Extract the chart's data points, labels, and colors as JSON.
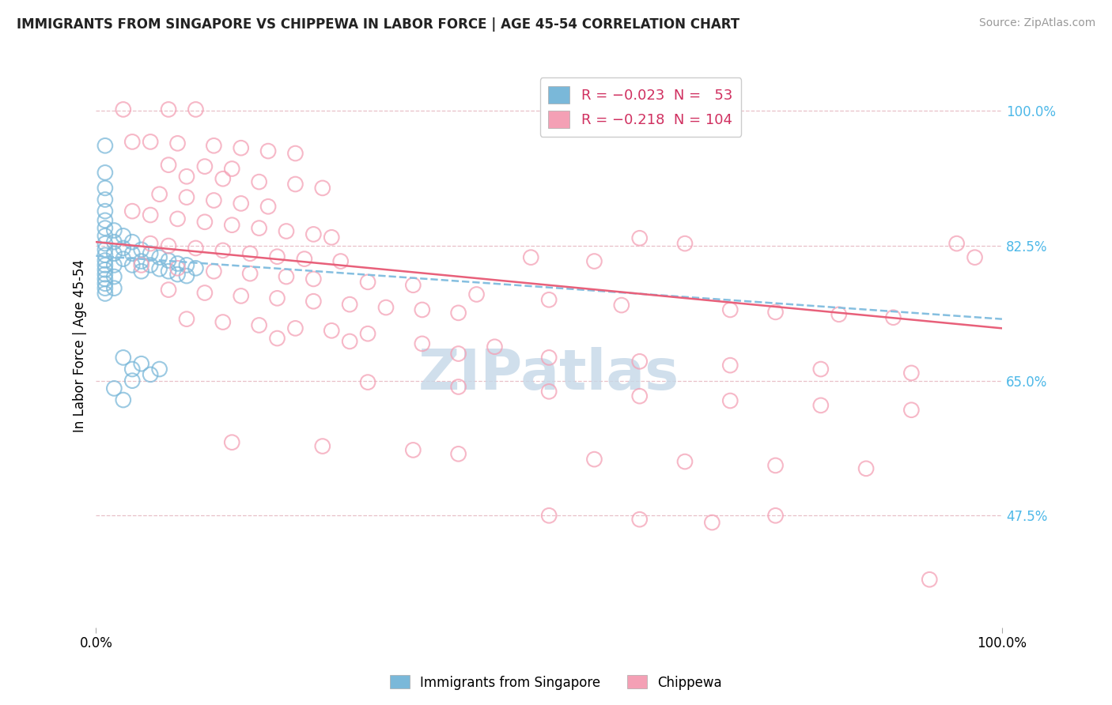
{
  "title": "IMMIGRANTS FROM SINGAPORE VS CHIPPEWA IN LABOR FORCE | AGE 45-54 CORRELATION CHART",
  "source": "Source: ZipAtlas.com",
  "ylabel": "In Labor Force | Age 45-54",
  "right_yticklabels": [
    "100.0%",
    "82.5%",
    "65.0%",
    "47.5%"
  ],
  "right_ytick_vals": [
    1.0,
    0.825,
    0.65,
    0.475
  ],
  "xtick_labels": [
    "0.0%",
    "100.0%"
  ],
  "xtick_vals": [
    0.0,
    1.0
  ],
  "singapore_color": "#7ab8d9",
  "chippewa_color": "#f4a0b5",
  "sg_line_color": "#85bfe0",
  "ch_line_color": "#e8607a",
  "bg_color": "#ffffff",
  "watermark": "ZIPatlas",
  "watermark_color": "#c5d8e8",
  "grid_color": "#e8c0c8",
  "ylim_low": 0.33,
  "ylim_high": 1.06,
  "xlim_low": 0.0,
  "xlim_high": 1.0,
  "sg_line_y0": 0.812,
  "sg_line_y1": 0.73,
  "ch_line_y0": 0.83,
  "ch_line_y1": 0.718,
  "singapore_dots": [
    [
      0.01,
      0.955
    ],
    [
      0.01,
      0.92
    ],
    [
      0.01,
      0.9
    ],
    [
      0.01,
      0.885
    ],
    [
      0.01,
      0.87
    ],
    [
      0.01,
      0.858
    ],
    [
      0.01,
      0.848
    ],
    [
      0.01,
      0.838
    ],
    [
      0.01,
      0.828
    ],
    [
      0.01,
      0.82
    ],
    [
      0.01,
      0.813
    ],
    [
      0.01,
      0.806
    ],
    [
      0.01,
      0.8
    ],
    [
      0.01,
      0.794
    ],
    [
      0.01,
      0.788
    ],
    [
      0.01,
      0.782
    ],
    [
      0.01,
      0.776
    ],
    [
      0.01,
      0.77
    ],
    [
      0.01,
      0.763
    ],
    [
      0.02,
      0.845
    ],
    [
      0.02,
      0.83
    ],
    [
      0.02,
      0.815
    ],
    [
      0.02,
      0.8
    ],
    [
      0.02,
      0.785
    ],
    [
      0.02,
      0.77
    ],
    [
      0.03,
      0.838
    ],
    [
      0.03,
      0.822
    ],
    [
      0.03,
      0.808
    ],
    [
      0.04,
      0.83
    ],
    [
      0.04,
      0.815
    ],
    [
      0.04,
      0.8
    ],
    [
      0.05,
      0.82
    ],
    [
      0.05,
      0.805
    ],
    [
      0.05,
      0.792
    ],
    [
      0.06,
      0.815
    ],
    [
      0.06,
      0.8
    ],
    [
      0.07,
      0.81
    ],
    [
      0.07,
      0.795
    ],
    [
      0.08,
      0.806
    ],
    [
      0.08,
      0.792
    ],
    [
      0.09,
      0.802
    ],
    [
      0.09,
      0.788
    ],
    [
      0.1,
      0.8
    ],
    [
      0.1,
      0.786
    ],
    [
      0.11,
      0.796
    ],
    [
      0.03,
      0.68
    ],
    [
      0.04,
      0.665
    ],
    [
      0.04,
      0.65
    ],
    [
      0.05,
      0.672
    ],
    [
      0.06,
      0.658
    ],
    [
      0.07,
      0.665
    ],
    [
      0.02,
      0.64
    ],
    [
      0.03,
      0.625
    ]
  ],
  "chippewa_dots": [
    [
      0.03,
      1.002
    ],
    [
      0.08,
      1.002
    ],
    [
      0.11,
      1.002
    ],
    [
      0.04,
      0.96
    ],
    [
      0.06,
      0.96
    ],
    [
      0.09,
      0.958
    ],
    [
      0.13,
      0.955
    ],
    [
      0.16,
      0.952
    ],
    [
      0.19,
      0.948
    ],
    [
      0.22,
      0.945
    ],
    [
      0.08,
      0.93
    ],
    [
      0.12,
      0.928
    ],
    [
      0.15,
      0.925
    ],
    [
      0.1,
      0.915
    ],
    [
      0.14,
      0.912
    ],
    [
      0.18,
      0.908
    ],
    [
      0.22,
      0.905
    ],
    [
      0.25,
      0.9
    ],
    [
      0.07,
      0.892
    ],
    [
      0.1,
      0.888
    ],
    [
      0.13,
      0.884
    ],
    [
      0.16,
      0.88
    ],
    [
      0.19,
      0.876
    ],
    [
      0.04,
      0.87
    ],
    [
      0.06,
      0.865
    ],
    [
      0.09,
      0.86
    ],
    [
      0.12,
      0.856
    ],
    [
      0.15,
      0.852
    ],
    [
      0.18,
      0.848
    ],
    [
      0.21,
      0.844
    ],
    [
      0.24,
      0.84
    ],
    [
      0.26,
      0.836
    ],
    [
      0.06,
      0.828
    ],
    [
      0.08,
      0.825
    ],
    [
      0.11,
      0.822
    ],
    [
      0.14,
      0.819
    ],
    [
      0.17,
      0.815
    ],
    [
      0.2,
      0.811
    ],
    [
      0.23,
      0.808
    ],
    [
      0.27,
      0.805
    ],
    [
      0.6,
      0.835
    ],
    [
      0.65,
      0.828
    ],
    [
      0.05,
      0.8
    ],
    [
      0.09,
      0.796
    ],
    [
      0.13,
      0.792
    ],
    [
      0.17,
      0.789
    ],
    [
      0.21,
      0.785
    ],
    [
      0.24,
      0.782
    ],
    [
      0.3,
      0.778
    ],
    [
      0.35,
      0.774
    ],
    [
      0.48,
      0.81
    ],
    [
      0.55,
      0.805
    ],
    [
      0.08,
      0.768
    ],
    [
      0.12,
      0.764
    ],
    [
      0.16,
      0.76
    ],
    [
      0.2,
      0.757
    ],
    [
      0.24,
      0.753
    ],
    [
      0.28,
      0.749
    ],
    [
      0.32,
      0.745
    ],
    [
      0.36,
      0.742
    ],
    [
      0.4,
      0.738
    ],
    [
      0.1,
      0.73
    ],
    [
      0.14,
      0.726
    ],
    [
      0.18,
      0.722
    ],
    [
      0.22,
      0.718
    ],
    [
      0.26,
      0.715
    ],
    [
      0.3,
      0.711
    ],
    [
      0.42,
      0.762
    ],
    [
      0.5,
      0.755
    ],
    [
      0.58,
      0.748
    ],
    [
      0.2,
      0.705
    ],
    [
      0.28,
      0.701
    ],
    [
      0.36,
      0.698
    ],
    [
      0.44,
      0.694
    ],
    [
      0.7,
      0.742
    ],
    [
      0.75,
      0.739
    ],
    [
      0.82,
      0.736
    ],
    [
      0.88,
      0.732
    ],
    [
      0.95,
      0.828
    ],
    [
      0.97,
      0.81
    ],
    [
      0.4,
      0.685
    ],
    [
      0.5,
      0.68
    ],
    [
      0.6,
      0.675
    ],
    [
      0.7,
      0.67
    ],
    [
      0.8,
      0.665
    ],
    [
      0.9,
      0.66
    ],
    [
      0.3,
      0.648
    ],
    [
      0.4,
      0.642
    ],
    [
      0.5,
      0.636
    ],
    [
      0.6,
      0.63
    ],
    [
      0.7,
      0.624
    ],
    [
      0.8,
      0.618
    ],
    [
      0.9,
      0.612
    ],
    [
      0.15,
      0.57
    ],
    [
      0.25,
      0.565
    ],
    [
      0.35,
      0.56
    ],
    [
      0.4,
      0.555
    ],
    [
      0.55,
      0.548
    ],
    [
      0.65,
      0.545
    ],
    [
      0.75,
      0.54
    ],
    [
      0.85,
      0.536
    ],
    [
      0.5,
      0.475
    ],
    [
      0.6,
      0.47
    ],
    [
      0.68,
      0.466
    ],
    [
      0.75,
      0.475
    ],
    [
      0.92,
      0.392
    ]
  ]
}
